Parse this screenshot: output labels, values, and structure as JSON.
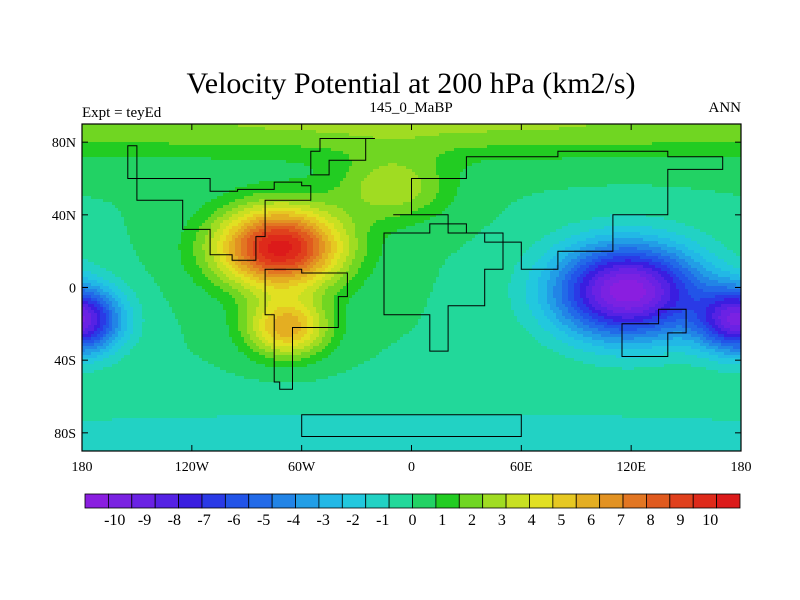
{
  "chart_data": {
    "type": "heatmap",
    "title": "Velocity Potential at 200 hPa (km2/s)",
    "left_label": "Expt = teyEd",
    "center_label": "145_0_MaBP",
    "right_label": "ANN",
    "xlim": [
      -180,
      180
    ],
    "ylim": [
      -90,
      90
    ],
    "x_ticks": [
      {
        "value": -180,
        "label": "180"
      },
      {
        "value": -120,
        "label": "120W"
      },
      {
        "value": -60,
        "label": "60W"
      },
      {
        "value": 0,
        "label": "0"
      },
      {
        "value": 60,
        "label": "60E"
      },
      {
        "value": 120,
        "label": "120E"
      },
      {
        "value": 180,
        "label": "180"
      }
    ],
    "y_ticks": [
      {
        "value": 80,
        "label": "80N"
      },
      {
        "value": 40,
        "label": "40N"
      },
      {
        "value": 0,
        "label": "0"
      },
      {
        "value": -40,
        "label": "40S"
      },
      {
        "value": -80,
        "label": "80S"
      }
    ],
    "colorbar": {
      "min": -11,
      "max": 11,
      "levels": [
        -10,
        -9,
        -8,
        -7,
        -6,
        -5,
        -4,
        -3,
        -2,
        -1,
        0,
        1,
        2,
        3,
        4,
        5,
        6,
        7,
        8,
        9,
        10
      ],
      "colors": [
        "#8a1ee0",
        "#7a22e2",
        "#6a22e4",
        "#5522e4",
        "#3a1ee0",
        "#2a3ae6",
        "#2254e8",
        "#226ae8",
        "#2284e6",
        "#229ee6",
        "#22b8e6",
        "#22c8de",
        "#22d2c4",
        "#22d89a",
        "#22d264",
        "#22cc22",
        "#70d622",
        "#a0dc22",
        "#c8e022",
        "#e2e022",
        "#e6c822",
        "#e4ae22",
        "#e29222",
        "#e27622",
        "#e05a1e",
        "#e0401c",
        "#de2a1a",
        "#dc1a1a"
      ]
    },
    "field": {
      "background": 0,
      "features": [
        {
          "name": "americas-high",
          "lon": -72,
          "lat": 22,
          "amp": 10.6,
          "sx": 34,
          "sy": 22
        },
        {
          "name": "south-america-lobe",
          "lon": -68,
          "lat": -22,
          "amp": 6.0,
          "sx": 22,
          "sy": 16
        },
        {
          "name": "pacific-low",
          "lon": 118,
          "lat": -2,
          "amp": -10.8,
          "sx": 40,
          "sy": 26
        },
        {
          "name": "pacific-low-east",
          "lon": 178,
          "lat": -18,
          "amp": -4.5,
          "sx": 22,
          "sy": 18
        },
        {
          "name": "pacific-low-west",
          "lon": -180,
          "lat": -18,
          "amp": -4.5,
          "sx": 22,
          "sy": 18
        },
        {
          "name": "arctic-ring",
          "lon": 0,
          "lat": 90,
          "amp": 2.5,
          "sx": 400,
          "sy": 18
        },
        {
          "name": "north-atlantic-ridge",
          "lon": -10,
          "lat": 55,
          "amp": 3.0,
          "sx": 30,
          "sy": 18
        },
        {
          "name": "antarctic-belt",
          "lon": 0,
          "lat": -90,
          "amp": -1.5,
          "sx": 400,
          "sy": 25
        }
      ]
    },
    "continent_outlines": [
      {
        "name": "north-america",
        "points": [
          [
            -155,
            78
          ],
          [
            -150,
            60
          ],
          [
            -110,
            53
          ],
          [
            -95,
            54
          ],
          [
            -75,
            58
          ],
          [
            -60,
            56
          ],
          [
            -55,
            48
          ],
          [
            -80,
            28
          ],
          [
            -85,
            15
          ],
          [
            -98,
            18
          ],
          [
            -110,
            32
          ],
          [
            -125,
            48
          ],
          [
            -150,
            60
          ]
        ]
      },
      {
        "name": "south-america",
        "points": [
          [
            -80,
            10
          ],
          [
            -60,
            8
          ],
          [
            -35,
            -5
          ],
          [
            -40,
            -22
          ],
          [
            -65,
            -56
          ],
          [
            -72,
            -52
          ],
          [
            -75,
            -15
          ],
          [
            -80,
            0
          ]
        ]
      },
      {
        "name": "africa",
        "points": [
          [
            -15,
            30
          ],
          [
            10,
            35
          ],
          [
            30,
            30
          ],
          [
            50,
            10
          ],
          [
            40,
            -10
          ],
          [
            20,
            -35
          ],
          [
            10,
            -15
          ],
          [
            -15,
            10
          ]
        ]
      },
      {
        "name": "eurasia",
        "points": [
          [
            -10,
            40
          ],
          [
            0,
            60
          ],
          [
            30,
            72
          ],
          [
            80,
            75
          ],
          [
            140,
            72
          ],
          [
            170,
            65
          ],
          [
            140,
            40
          ],
          [
            110,
            20
          ],
          [
            80,
            10
          ],
          [
            60,
            25
          ],
          [
            40,
            30
          ],
          [
            20,
            40
          ]
        ]
      },
      {
        "name": "australia",
        "points": [
          [
            115,
            -20
          ],
          [
            135,
            -12
          ],
          [
            150,
            -25
          ],
          [
            140,
            -38
          ],
          [
            115,
            -34
          ]
        ]
      },
      {
        "name": "antarctica",
        "points": [
          [
            -60,
            -70
          ],
          [
            0,
            -70
          ],
          [
            60,
            -70
          ],
          [
            60,
            -82
          ],
          [
            -60,
            -82
          ]
        ]
      },
      {
        "name": "greenland",
        "points": [
          [
            -50,
            82
          ],
          [
            -20,
            82
          ],
          [
            -25,
            70
          ],
          [
            -45,
            62
          ],
          [
            -55,
            75
          ]
        ]
      }
    ]
  }
}
